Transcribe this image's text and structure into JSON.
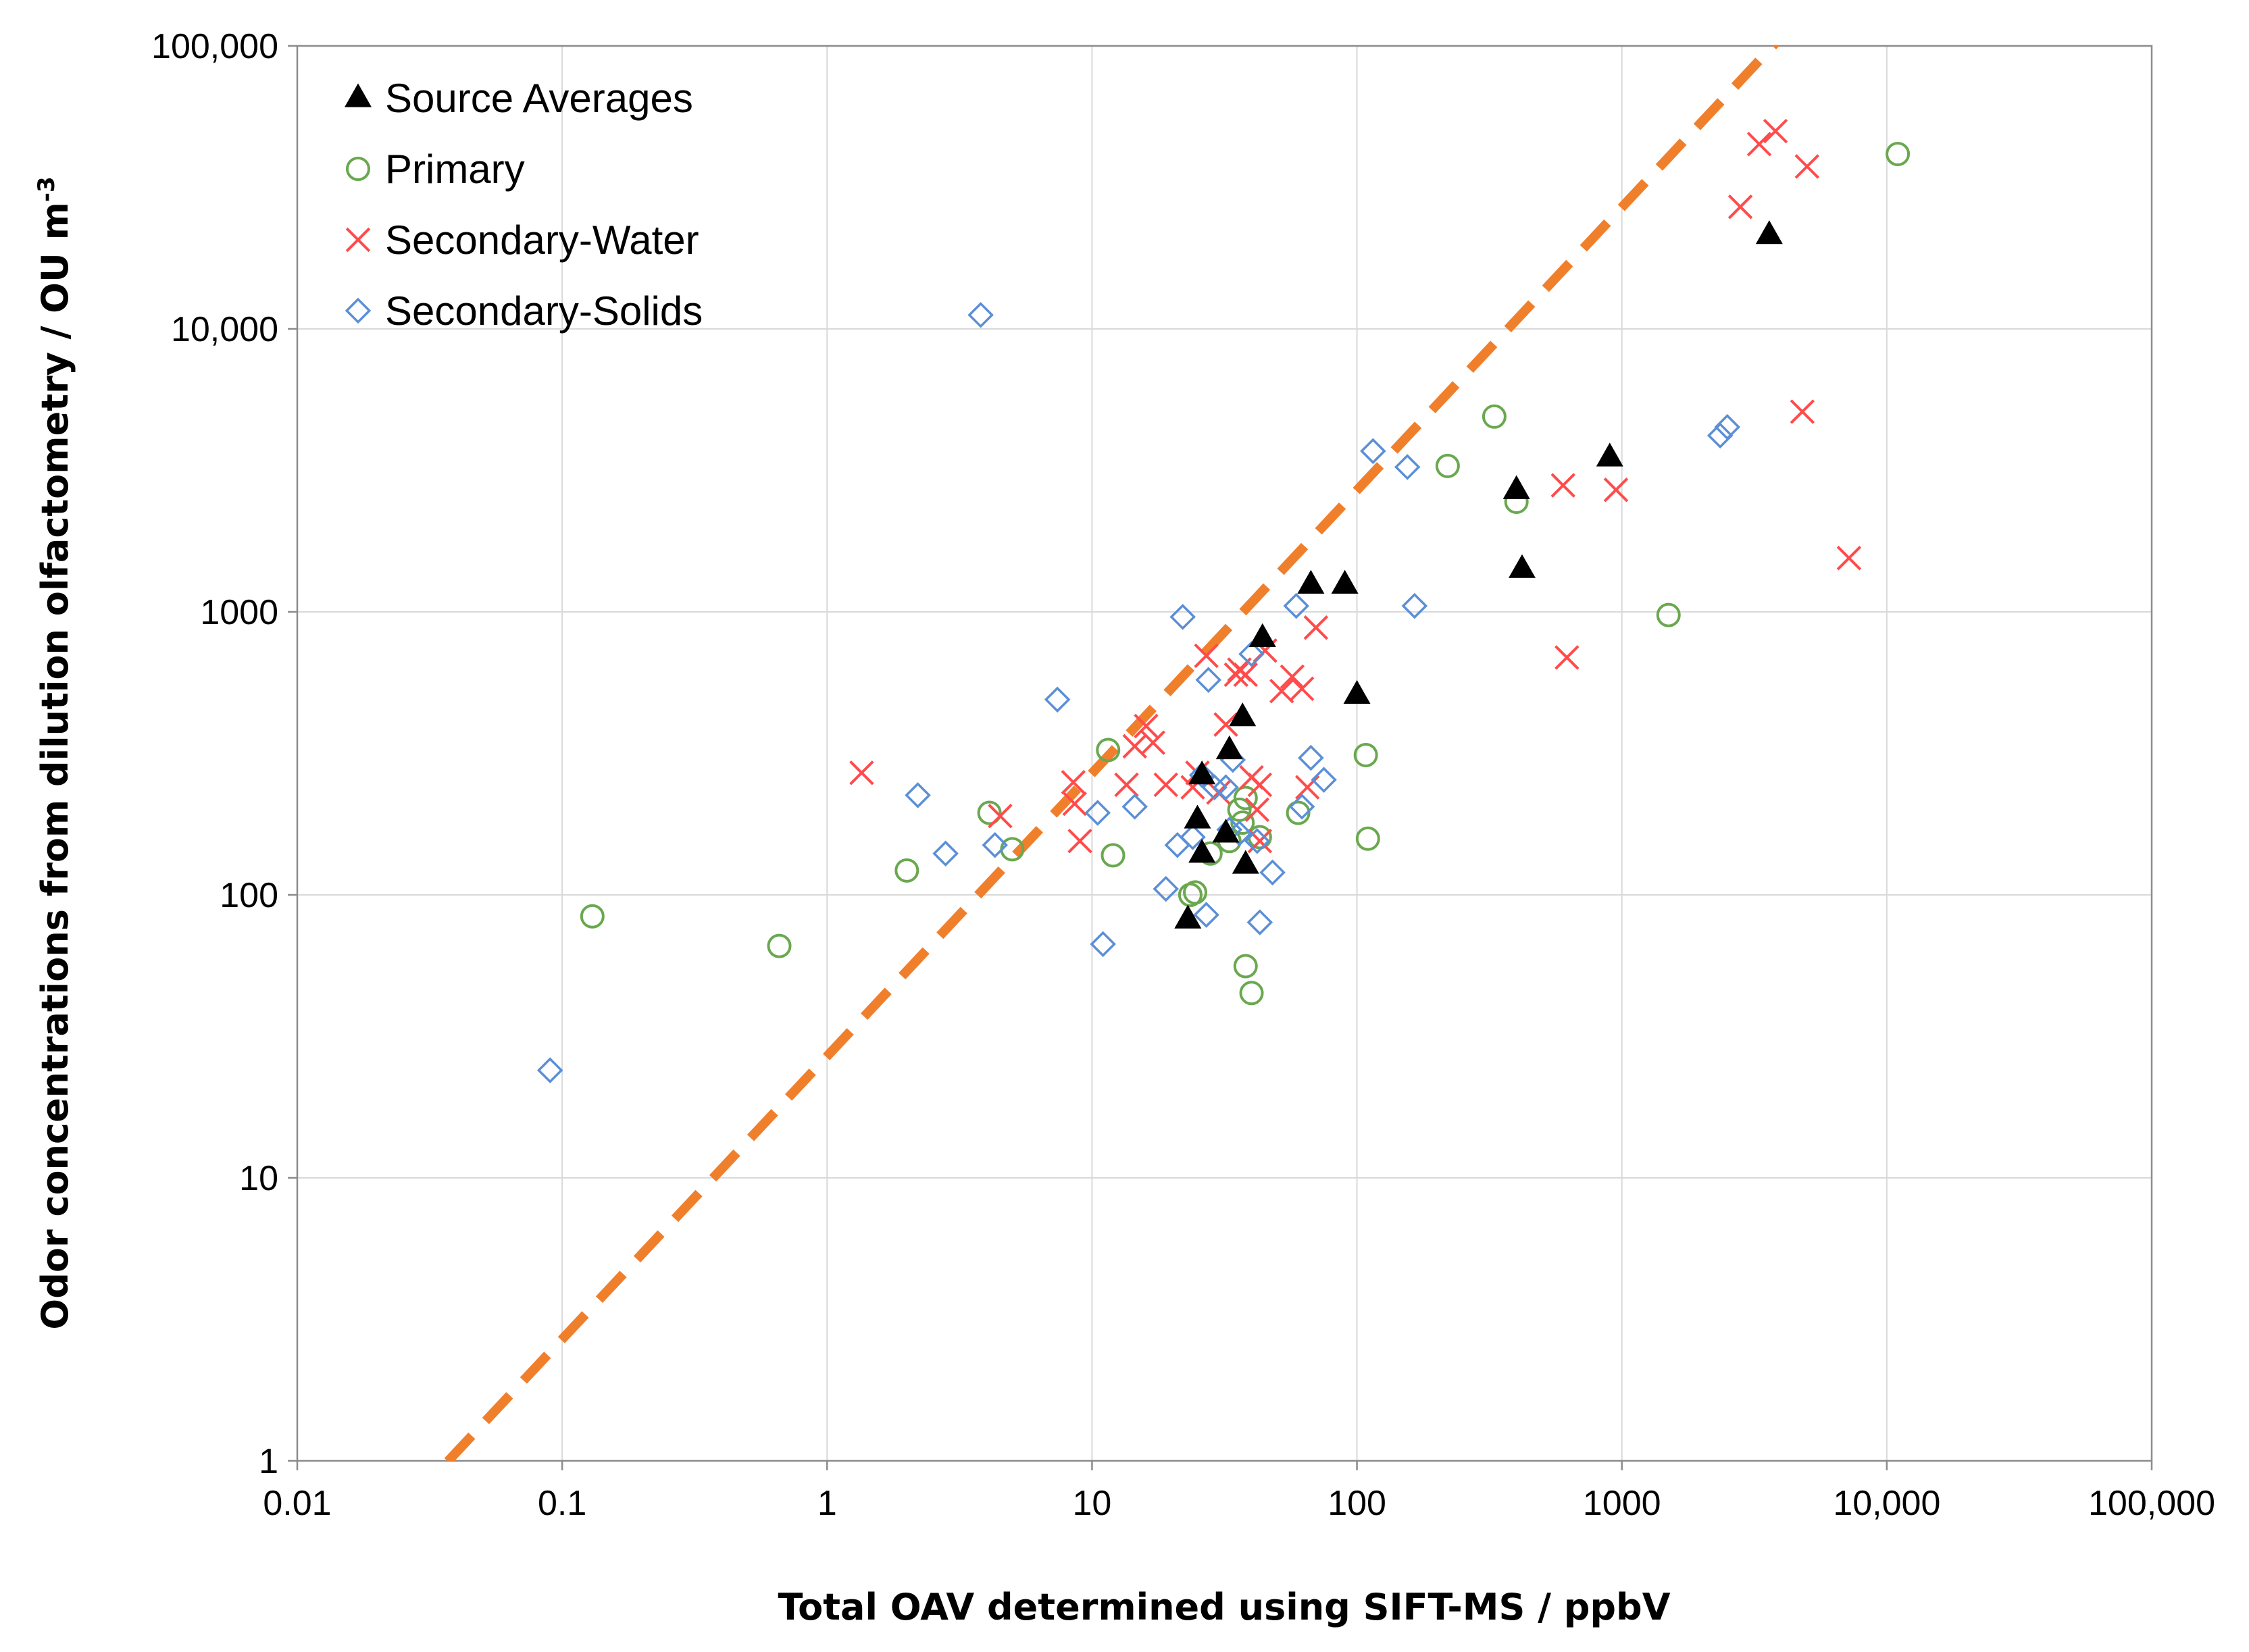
{
  "chart_data": {
    "type": "scatter",
    "x_scale": "log",
    "y_scale": "log",
    "xlim": [
      0.01,
      100000
    ],
    "ylim": [
      1,
      100000
    ],
    "xlabel": "Total OAV determined using SIFT-MS / ppbV",
    "ylabel": "Odor concentrations from dilution olfactometry / OU m",
    "ylabel_superscript": "-3",
    "x_ticks": [
      {
        "value": 0.01,
        "label": "0.01"
      },
      {
        "value": 0.1,
        "label": "0.1"
      },
      {
        "value": 1,
        "label": "1"
      },
      {
        "value": 10,
        "label": "10"
      },
      {
        "value": 100,
        "label": "100"
      },
      {
        "value": 1000,
        "label": "1000"
      },
      {
        "value": 10000,
        "label": "10,000"
      },
      {
        "value": 100000,
        "label": "100,000"
      }
    ],
    "y_ticks": [
      {
        "value": 1,
        "label": "1"
      },
      {
        "value": 10,
        "label": "10"
      },
      {
        "value": 100,
        "label": "100"
      },
      {
        "value": 1000,
        "label": "1000"
      },
      {
        "value": 10000,
        "label": "10,000"
      },
      {
        "value": 100000,
        "label": "100,000"
      }
    ],
    "grid": true,
    "legend_position": "top-left",
    "trendline": {
      "style": "dashed",
      "color": "#f07f2c",
      "slope": 1,
      "intercept_log10": 1.43,
      "x_start": 0.037,
      "x_end": 33000
    },
    "series": [
      {
        "name": "Source Averages",
        "marker": "triangle",
        "color": "#000000",
        "points": [
          [
            23,
            82
          ],
          [
            25,
            185
          ],
          [
            26,
            140
          ],
          [
            26,
            265
          ],
          [
            32,
            165
          ],
          [
            33,
            325
          ],
          [
            37,
            425
          ],
          [
            38,
            128
          ],
          [
            44,
            810
          ],
          [
            67,
            1250
          ],
          [
            90,
            1250
          ],
          [
            100,
            510
          ],
          [
            400,
            2700
          ],
          [
            420,
            1420
          ],
          [
            900,
            3520
          ],
          [
            3600,
            21500
          ]
        ]
      },
      {
        "name": "Primary",
        "marker": "circle",
        "color": "#6aa84f",
        "points": [
          [
            0.13,
            84
          ],
          [
            0.66,
            66
          ],
          [
            2,
            122
          ],
          [
            4.1,
            195
          ],
          [
            5,
            145
          ],
          [
            11.5,
            325
          ],
          [
            12,
            138
          ],
          [
            23.5,
            100
          ],
          [
            24.5,
            102
          ],
          [
            28,
            140
          ],
          [
            33,
            155
          ],
          [
            36,
            200
          ],
          [
            37,
            180
          ],
          [
            38,
            220
          ],
          [
            38,
            56
          ],
          [
            40,
            45
          ],
          [
            43,
            160
          ],
          [
            60,
            195
          ],
          [
            108,
            312
          ],
          [
            110,
            158
          ],
          [
            220,
            3280
          ],
          [
            330,
            4900
          ],
          [
            400,
            2450
          ],
          [
            1500,
            975
          ],
          [
            11000,
            41500
          ]
        ]
      },
      {
        "name": "Secondary-Water",
        "marker": "x",
        "color": "#ff4b4b",
        "points": [
          [
            1.35,
            270
          ],
          [
            4.5,
            190
          ],
          [
            8.5,
            250
          ],
          [
            8.6,
            210
          ],
          [
            9,
            155
          ],
          [
            13.5,
            245
          ],
          [
            14.5,
            335
          ],
          [
            16,
            395
          ],
          [
            17,
            345
          ],
          [
            19,
            245
          ],
          [
            24,
            240
          ],
          [
            25,
            270
          ],
          [
            27,
            700
          ],
          [
            30,
            230
          ],
          [
            32,
            400
          ],
          [
            35,
            600
          ],
          [
            36,
            625
          ],
          [
            38,
            600
          ],
          [
            40,
            260
          ],
          [
            42,
            200
          ],
          [
            43,
            155
          ],
          [
            43,
            245
          ],
          [
            45,
            730
          ],
          [
            52,
            525
          ],
          [
            57,
            590
          ],
          [
            62,
            535
          ],
          [
            65,
            240
          ],
          [
            70,
            880
          ],
          [
            600,
            2800
          ],
          [
            620,
            690
          ],
          [
            950,
            2700
          ],
          [
            2800,
            27000
          ],
          [
            3300,
            45000
          ],
          [
            3800,
            50000
          ],
          [
            4800,
            5100
          ],
          [
            5000,
            37500
          ],
          [
            7200,
            1550
          ]
        ]
      },
      {
        "name": "Secondary-Solids",
        "marker": "diamond",
        "color": "#5b8fd6",
        "points": [
          [
            0.09,
            24
          ],
          [
            2.2,
            225
          ],
          [
            2.8,
            140
          ],
          [
            4.3,
            150
          ],
          [
            3.8,
            11200
          ],
          [
            7.4,
            490
          ],
          [
            10.5,
            195
          ],
          [
            11,
            67
          ],
          [
            14.5,
            205
          ],
          [
            19,
            105
          ],
          [
            21,
            150
          ],
          [
            22,
            960
          ],
          [
            24,
            160
          ],
          [
            26,
            265
          ],
          [
            27,
            85
          ],
          [
            27.5,
            575
          ],
          [
            29,
            240
          ],
          [
            32,
            240
          ],
          [
            33,
            170
          ],
          [
            34,
            300
          ],
          [
            36,
            165
          ],
          [
            40,
            710
          ],
          [
            42,
            155
          ],
          [
            43,
            80
          ],
          [
            48,
            120
          ],
          [
            59,
            1050
          ],
          [
            62,
            205
          ],
          [
            67,
            305
          ],
          [
            75,
            255
          ],
          [
            115,
            3700
          ],
          [
            155,
            3250
          ],
          [
            165,
            1050
          ],
          [
            2350,
            4200
          ],
          [
            2500,
            4500
          ]
        ]
      }
    ]
  }
}
